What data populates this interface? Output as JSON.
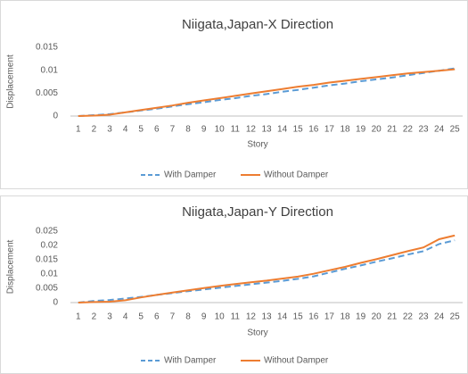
{
  "chart_data": [
    {
      "type": "line",
      "title": "Niigata,Japan-X Direction",
      "x_label": "Story",
      "y_label": "Displacement",
      "categories": [
        "1",
        "2",
        "3",
        "4",
        "5",
        "6",
        "7",
        "8",
        "9",
        "10",
        "11",
        "12",
        "13",
        "14",
        "15",
        "16",
        "17",
        "18",
        "19",
        "20",
        "21",
        "22",
        "23",
        "24",
        "25"
      ],
      "ylim": [
        0,
        0.015
      ],
      "yticks": [
        0,
        0.005,
        0.01,
        0.015
      ],
      "legend": "bottom",
      "series": [
        {
          "name": "With Damper",
          "color": "#5b9bd5",
          "dashed": true,
          "values": [
            0,
            0.0002,
            0.0004,
            0.0008,
            0.0012,
            0.0016,
            0.0021,
            0.0026,
            0.003,
            0.0035,
            0.0039,
            0.0044,
            0.0048,
            0.0053,
            0.0057,
            0.0062,
            0.0067,
            0.0071,
            0.0076,
            0.008,
            0.0084,
            0.0089,
            0.0094,
            0.0099,
            0.0104
          ]
        },
        {
          "name": "Without Damper",
          "color": "#ed7d31",
          "dashed": false,
          "values": [
            0,
            0.0001,
            0.0003,
            0.0008,
            0.0013,
            0.0018,
            0.0023,
            0.0029,
            0.0034,
            0.0039,
            0.0044,
            0.0049,
            0.0054,
            0.0059,
            0.0064,
            0.0068,
            0.0073,
            0.0077,
            0.0081,
            0.0085,
            0.0089,
            0.0093,
            0.0096,
            0.0099,
            0.0102
          ]
        }
      ]
    },
    {
      "type": "line",
      "title": "Niigata,Japan-Y Direction",
      "x_label": "Story",
      "y_label": "Displacement",
      "categories": [
        "1",
        "2",
        "3",
        "4",
        "5",
        "6",
        "7",
        "8",
        "9",
        "10",
        "11",
        "12",
        "13",
        "14",
        "15",
        "16",
        "17",
        "18",
        "19",
        "20",
        "21",
        "22",
        "23",
        "24",
        "25"
      ],
      "ylim": [
        0,
        0.025
      ],
      "yticks": [
        0,
        0.005,
        0.01,
        0.015,
        0.02,
        0.025
      ],
      "legend": "bottom",
      "series": [
        {
          "name": "With Damper",
          "color": "#5b9bd5",
          "dashed": true,
          "values": [
            0,
            0.0006,
            0.0009,
            0.0014,
            0.002,
            0.0027,
            0.0033,
            0.004,
            0.0046,
            0.0052,
            0.0058,
            0.0064,
            0.007,
            0.0076,
            0.0083,
            0.0092,
            0.0105,
            0.0118,
            0.013,
            0.0143,
            0.0155,
            0.0168,
            0.018,
            0.0205,
            0.0218
          ]
        },
        {
          "name": "Without Damper",
          "color": "#ed7d31",
          "dashed": false,
          "values": [
            0,
            0.0002,
            0.0003,
            0.0008,
            0.0018,
            0.0027,
            0.0035,
            0.0043,
            0.0051,
            0.0058,
            0.0065,
            0.0071,
            0.0077,
            0.0084,
            0.0091,
            0.0101,
            0.0113,
            0.0125,
            0.0139,
            0.0152,
            0.0166,
            0.018,
            0.0193,
            0.0222,
            0.0235
          ]
        }
      ]
    }
  ]
}
